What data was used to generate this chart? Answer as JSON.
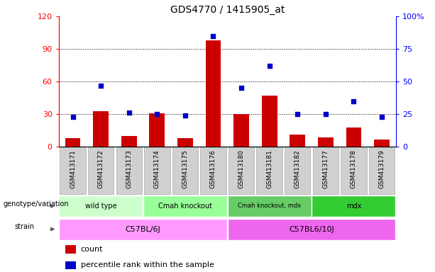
{
  "title": "GDS4770 / 1415905_at",
  "samples": [
    "GSM413171",
    "GSM413172",
    "GSM413173",
    "GSM413174",
    "GSM413175",
    "GSM413176",
    "GSM413180",
    "GSM413181",
    "GSM413182",
    "GSM413177",
    "GSM413178",
    "GSM413179"
  ],
  "counts": [
    8,
    33,
    10,
    31,
    8,
    98,
    30,
    47,
    11,
    9,
    18,
    7
  ],
  "percentiles": [
    23,
    47,
    26,
    25,
    24,
    85,
    45,
    62,
    25,
    25,
    35,
    23
  ],
  "ylim_left": [
    0,
    120
  ],
  "ylim_right": [
    0,
    100
  ],
  "yticks_left": [
    0,
    30,
    60,
    90,
    120
  ],
  "yticks_right": [
    0,
    25,
    50,
    75,
    100
  ],
  "ytick_labels_left": [
    "0",
    "30",
    "60",
    "90",
    "120"
  ],
  "ytick_labels_right": [
    "0",
    "25",
    "50",
    "75",
    "100%"
  ],
  "bar_color": "#cc0000",
  "dot_color": "#0000cc",
  "genotype_groups": [
    {
      "label": "wild type",
      "start": 0,
      "end": 3,
      "color": "#ccffcc"
    },
    {
      "label": "Cmah knockout",
      "start": 3,
      "end": 6,
      "color": "#99ff99"
    },
    {
      "label": "Cmah knockout, mdx",
      "start": 6,
      "end": 9,
      "color": "#66cc66"
    },
    {
      "label": "mdx",
      "start": 9,
      "end": 12,
      "color": "#33cc33"
    }
  ],
  "strain_groups": [
    {
      "label": "C57BL/6J",
      "start": 0,
      "end": 6,
      "color": "#ff99ff"
    },
    {
      "label": "C57BL6/10J",
      "start": 6,
      "end": 12,
      "color": "#ee66ee"
    }
  ],
  "genotype_label": "genotype/variation",
  "strain_label": "strain",
  "legend_count_label": "count",
  "legend_pct_label": "percentile rank within the sample",
  "xticklabel_bg": "#d0d0d0",
  "xticklabel_border": "#aaaaaa"
}
